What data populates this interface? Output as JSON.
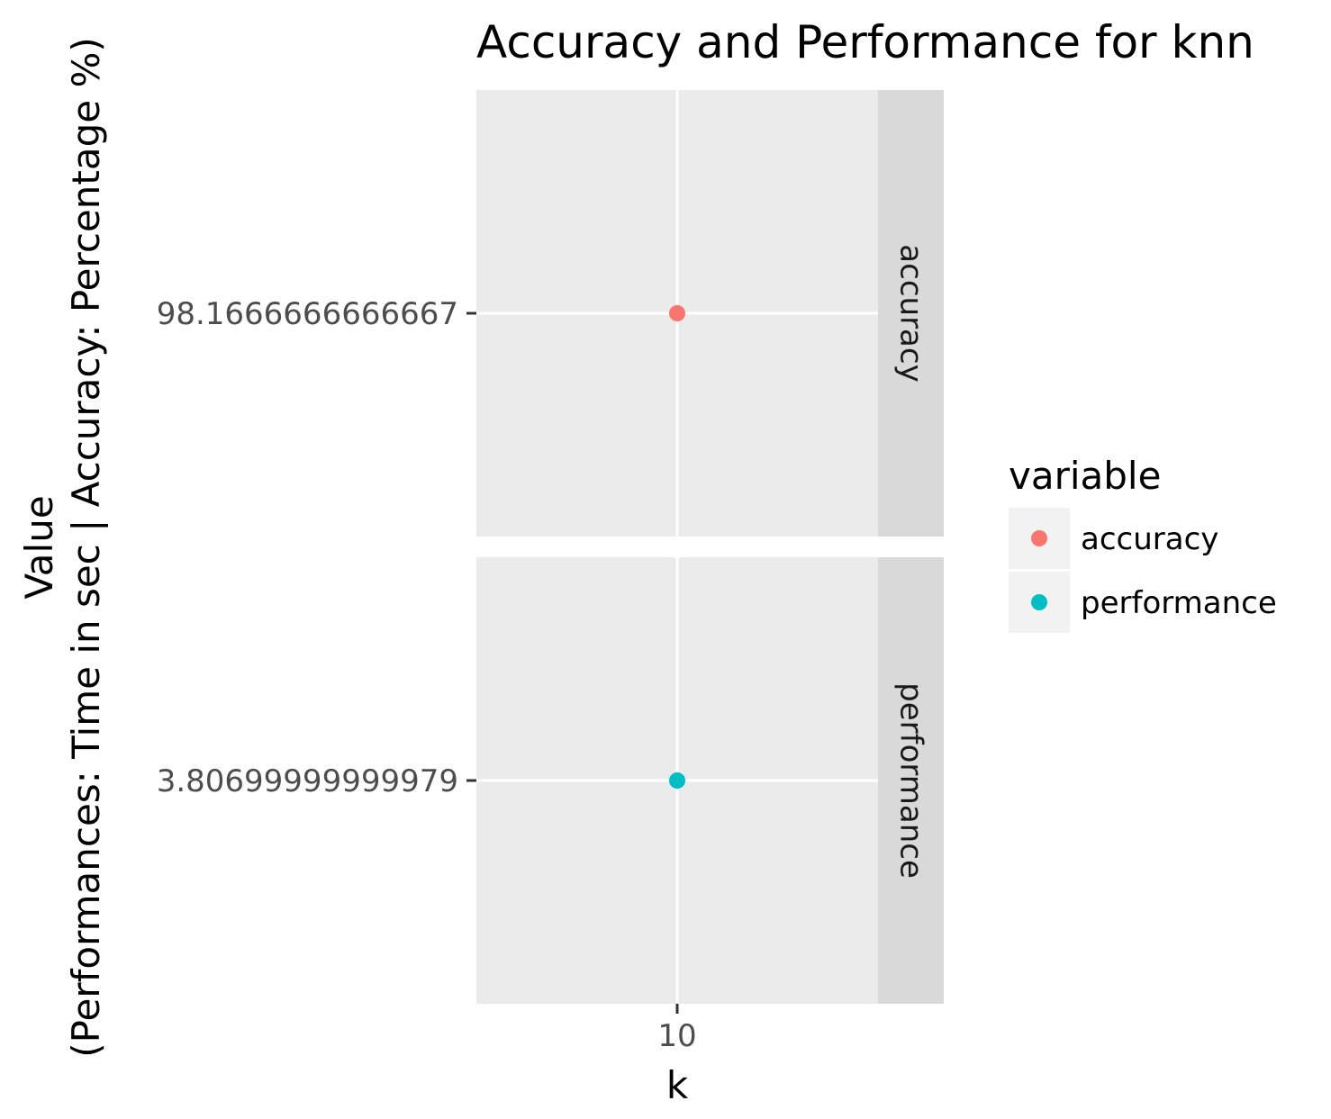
{
  "chart_data": {
    "type": "scatter",
    "title": "Accuracy and Performance for knn",
    "xlabel": "k",
    "ylabel_lines": [
      "Value",
      "(Performances: Time in sec | Accuracy: Percentage %)"
    ],
    "x_ticks": [
      "10"
    ],
    "facets": [
      {
        "strip_label": "accuracy",
        "y_tick_label": "98.1666666666667",
        "points": [
          {
            "x": 10,
            "y": 98.1666666666667
          }
        ],
        "color": "#F8766D"
      },
      {
        "strip_label": "performance",
        "y_tick_label": "3.80699999999979",
        "points": [
          {
            "x": 10,
            "y": 3.80699999999979
          }
        ],
        "color": "#00BFC4"
      }
    ],
    "legend": {
      "title": "variable",
      "position": "right",
      "entries": [
        {
          "label": "accuracy",
          "color": "#F8766D"
        },
        {
          "label": "performance",
          "color": "#00BFC4"
        }
      ]
    },
    "grid": true,
    "panel_background": "#EBEBEB",
    "strip_background": "#D9D9D9"
  }
}
